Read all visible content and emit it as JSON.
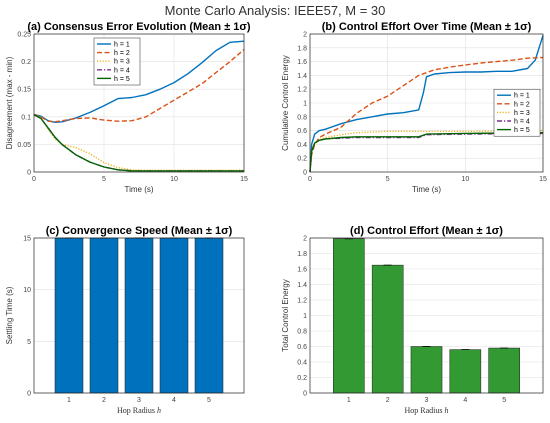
{
  "figure": {
    "title": "Monte Carlo Analysis: IEEE57, M = 30"
  },
  "colors": {
    "h1": "#0072BD",
    "h2": "#D95319",
    "h3": "#EDB120",
    "h4": "#7E2F8E",
    "h5": "#006400",
    "bar_blue": "#0072BD",
    "bar_green": "#339933"
  },
  "chart_data": [
    {
      "id": "a",
      "type": "line",
      "title": "(a) Consensus Error Evolution (Mean ± 1σ)",
      "xlabel": "Time (s)",
      "ylabel": "Disagreement (max - min)",
      "xlim": [
        0,
        15
      ],
      "ylim": [
        0,
        0.25
      ],
      "xticks": [
        0,
        5,
        10,
        15
      ],
      "yticks": [
        0,
        0.05,
        0.1,
        0.15,
        0.2,
        0.25
      ],
      "ytick_labels": [
        "0",
        "0.05",
        "0.1",
        "0.15",
        "0.2",
        "0.25"
      ],
      "grid": true,
      "legend": {
        "position": "top-center",
        "entries": [
          "h = 1",
          "h = 2",
          "h = 3",
          "h = 4",
          "h = 5"
        ]
      },
      "series": [
        {
          "name": "h = 1",
          "style": "solid",
          "color_key": "h1",
          "x": [
            0,
            0.5,
            1,
            1.5,
            2,
            3,
            4,
            5,
            6,
            7,
            8,
            9,
            10,
            11,
            12,
            13,
            14,
            15
          ],
          "y": [
            0.104,
            0.101,
            0.093,
            0.09,
            0.091,
            0.098,
            0.108,
            0.12,
            0.133,
            0.135,
            0.14,
            0.15,
            0.162,
            0.178,
            0.198,
            0.22,
            0.235,
            0.237
          ]
        },
        {
          "name": "h = 2",
          "style": "dashed",
          "color_key": "h2",
          "x": [
            0,
            0.5,
            1,
            1.5,
            2,
            3,
            4,
            5,
            6,
            7,
            8,
            9,
            10,
            11,
            12,
            13,
            14,
            15
          ],
          "y": [
            0.104,
            0.1,
            0.092,
            0.091,
            0.093,
            0.097,
            0.098,
            0.094,
            0.092,
            0.093,
            0.1,
            0.115,
            0.13,
            0.145,
            0.16,
            0.18,
            0.2,
            0.222
          ]
        },
        {
          "name": "h = 3",
          "style": "dotted",
          "color_key": "h3",
          "x": [
            0,
            0.5,
            1,
            1.5,
            2,
            3,
            4,
            5,
            6,
            7,
            8,
            10,
            12,
            15
          ],
          "y": [
            0.104,
            0.098,
            0.078,
            0.06,
            0.05,
            0.044,
            0.033,
            0.017,
            0.008,
            0.004,
            0.003,
            0.003,
            0.003,
            0.003
          ]
        },
        {
          "name": "h = 4",
          "style": "dashdot",
          "color_key": "h4",
          "x": [
            0,
            0.5,
            1,
            1.5,
            2,
            3,
            4,
            5,
            6,
            7,
            8,
            10,
            12,
            15
          ],
          "y": [
            0.104,
            0.097,
            0.08,
            0.063,
            0.05,
            0.031,
            0.018,
            0.009,
            0.004,
            0.002,
            0.002,
            0.002,
            0.002,
            0.002
          ]
        },
        {
          "name": "h = 5",
          "style": "solid",
          "color_key": "h5",
          "x": [
            0,
            0.5,
            1,
            1.5,
            2,
            3,
            4,
            5,
            6,
            7,
            8,
            10,
            12,
            15
          ],
          "y": [
            0.104,
            0.097,
            0.08,
            0.063,
            0.05,
            0.031,
            0.018,
            0.009,
            0.004,
            0.002,
            0.002,
            0.002,
            0.002,
            0.002
          ]
        }
      ]
    },
    {
      "id": "b",
      "type": "line",
      "title": "(b) Control Effort Over Time (Mean ± 1σ)",
      "xlabel": "Time (s)",
      "ylabel": "Cumulative Control Energy",
      "xlim": [
        0,
        15
      ],
      "ylim": [
        0,
        2
      ],
      "xticks": [
        0,
        5,
        10,
        15
      ],
      "yticks": [
        0,
        0.2,
        0.4,
        0.6,
        0.8,
        1,
        1.2,
        1.4,
        1.6,
        1.8,
        2
      ],
      "ytick_labels": [
        "0",
        "0.2",
        "0.4",
        "0.6",
        "0.8",
        "1",
        "1.2",
        "1.4",
        "1.6",
        "1.8",
        "2"
      ],
      "grid": true,
      "legend": {
        "position": "right",
        "entries": [
          "h = 1",
          "h = 2",
          "h = 3",
          "h = 4",
          "h = 5"
        ]
      },
      "series": [
        {
          "name": "h = 1",
          "style": "solid",
          "color_key": "h1",
          "x": [
            0,
            0.1,
            0.3,
            0.6,
            1,
            2,
            3,
            4,
            5,
            6,
            7,
            7.3,
            7.5,
            8,
            9,
            10,
            11,
            12,
            13,
            14,
            14.5,
            15
          ],
          "y": [
            0,
            0.4,
            0.55,
            0.6,
            0.62,
            0.7,
            0.76,
            0.8,
            0.84,
            0.86,
            0.9,
            1.15,
            1.38,
            1.42,
            1.44,
            1.45,
            1.45,
            1.46,
            1.46,
            1.5,
            1.62,
            1.98
          ]
        },
        {
          "name": "h = 2",
          "style": "dashed",
          "color_key": "h2",
          "x": [
            0,
            0.1,
            0.3,
            0.6,
            1,
            2,
            3,
            4,
            5,
            6,
            7,
            8,
            9,
            10,
            11,
            12,
            13,
            14,
            15
          ],
          "y": [
            0,
            0.25,
            0.4,
            0.5,
            0.55,
            0.65,
            0.85,
            1.0,
            1.1,
            1.25,
            1.4,
            1.48,
            1.52,
            1.55,
            1.58,
            1.6,
            1.62,
            1.65,
            1.66
          ]
        },
        {
          "name": "h = 3",
          "style": "dotted",
          "color_key": "h3",
          "x": [
            0,
            0.1,
            0.3,
            0.6,
            1,
            2,
            3,
            4,
            5,
            7,
            10,
            15
          ],
          "y": [
            0,
            0.3,
            0.42,
            0.47,
            0.5,
            0.54,
            0.57,
            0.58,
            0.59,
            0.59,
            0.59,
            0.6
          ]
        },
        {
          "name": "h = 4",
          "style": "dashdot",
          "color_key": "h4",
          "x": [
            0,
            0.1,
            0.3,
            0.6,
            1,
            2,
            3,
            5,
            7,
            7.5,
            10,
            15
          ],
          "y": [
            0,
            0.3,
            0.42,
            0.46,
            0.48,
            0.49,
            0.5,
            0.5,
            0.5,
            0.54,
            0.55,
            0.56
          ]
        },
        {
          "name": "h = 5",
          "style": "solid",
          "color_key": "h5",
          "x": [
            0,
            0.1,
            0.3,
            0.6,
            1,
            2,
            3,
            5,
            7,
            7.5,
            10,
            15
          ],
          "y": [
            0,
            0.3,
            0.42,
            0.46,
            0.48,
            0.5,
            0.51,
            0.51,
            0.51,
            0.55,
            0.56,
            0.57
          ]
        }
      ]
    },
    {
      "id": "c",
      "type": "bar",
      "title": "(c) Convergence Speed (Mean ± 1σ)",
      "xlabel": "Hop Radius h",
      "ylabel": "Settling Time (s)",
      "categories": [
        "1",
        "2",
        "3",
        "4",
        "5"
      ],
      "values": [
        15,
        15,
        15,
        15,
        15
      ],
      "ylim": [
        0,
        15
      ],
      "yticks": [
        0,
        5,
        10,
        15
      ],
      "ytick_labels": [
        "0",
        "5",
        "10",
        "15"
      ],
      "grid": true,
      "color_key": "bar_blue"
    },
    {
      "id": "d",
      "type": "bar",
      "title": "(d) Control Effort (Mean ± 1σ)",
      "xlabel": "Hop Radius h",
      "ylabel": "Total Control Energy",
      "categories": [
        "1",
        "2",
        "3",
        "4",
        "5"
      ],
      "values": [
        1.99,
        1.65,
        0.6,
        0.56,
        0.58
      ],
      "ylim": [
        0,
        2
      ],
      "yticks": [
        0,
        0.2,
        0.4,
        0.6,
        0.8,
        1,
        1.2,
        1.4,
        1.6,
        1.8,
        2
      ],
      "ytick_labels": [
        "0",
        "0.2",
        "0.4",
        "0.6",
        "0.8",
        "1",
        "1.2",
        "1.4",
        "1.6",
        "1.8",
        "2"
      ],
      "grid": true,
      "color_key": "bar_green"
    }
  ]
}
